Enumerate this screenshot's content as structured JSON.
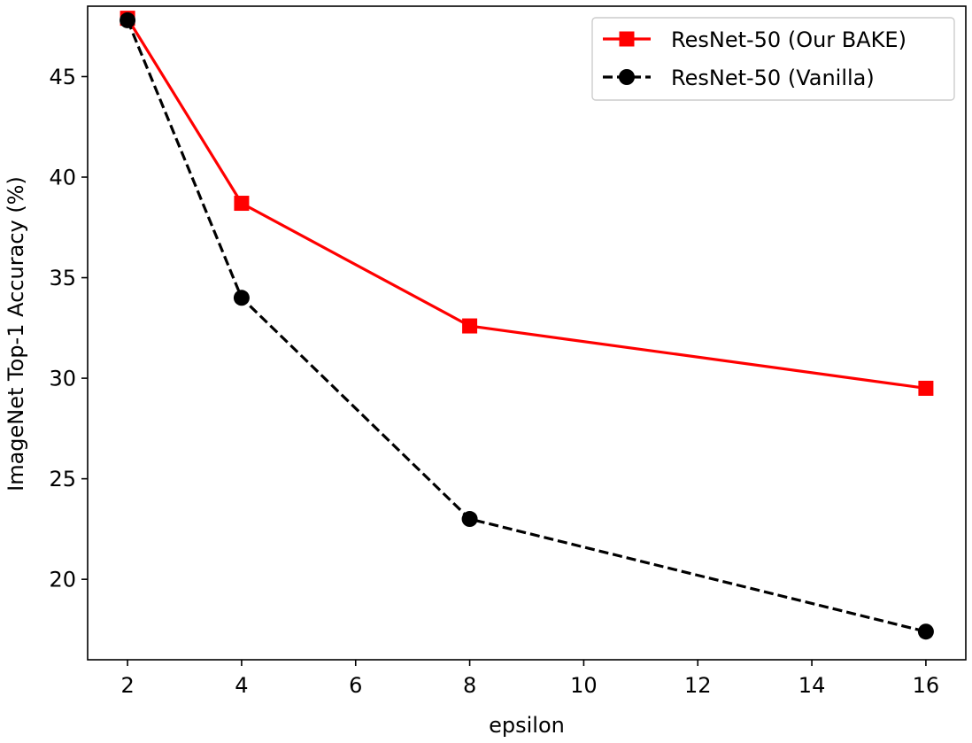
{
  "chart_data": {
    "type": "line",
    "title": "",
    "xlabel": "epsilon",
    "ylabel": "ImageNet Top-1 Accuracy (%)",
    "xlim": [
      1.3,
      16.7
    ],
    "ylim": [
      16.0,
      48.5
    ],
    "x_ticks": [
      2,
      4,
      6,
      8,
      10,
      12,
      14,
      16
    ],
    "y_ticks": [
      20,
      25,
      30,
      35,
      40,
      45
    ],
    "grid": false,
    "legend_position": "top-right",
    "series": [
      {
        "name": "ResNet-50 (Our BAKE)",
        "color": "#ff0000",
        "line_style": "solid",
        "marker": "square",
        "x": [
          2,
          4,
          8,
          16
        ],
        "y": [
          47.9,
          38.7,
          32.6,
          29.5
        ]
      },
      {
        "name": "ResNet-50 (Vanilla)",
        "color": "#000000",
        "line_style": "dashed",
        "marker": "circle",
        "x": [
          2,
          4,
          8,
          16
        ],
        "y": [
          47.8,
          34.0,
          23.0,
          17.4
        ]
      }
    ]
  }
}
